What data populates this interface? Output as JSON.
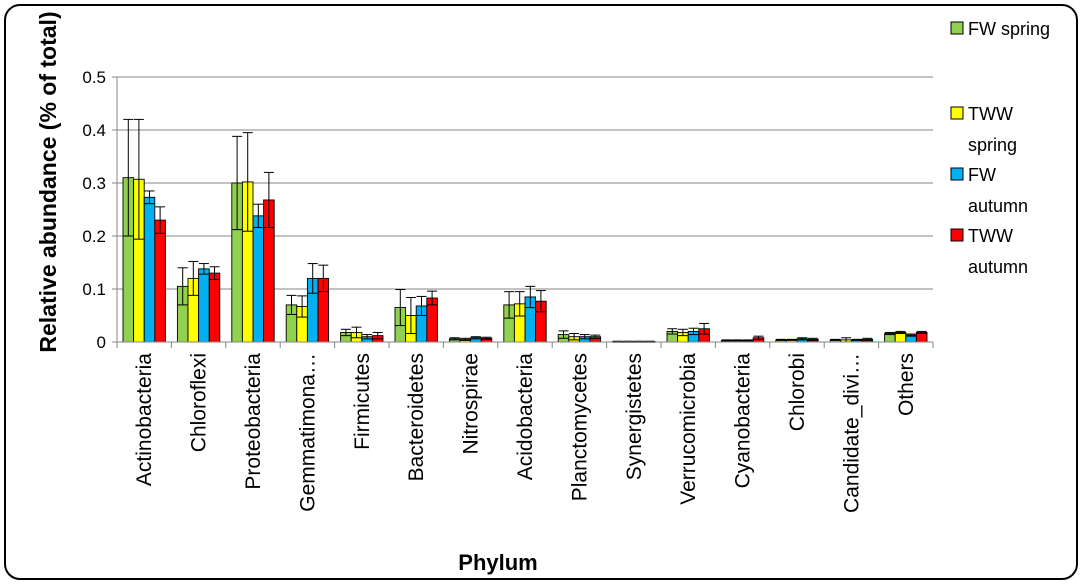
{
  "chart_data": {
    "type": "bar",
    "title": "",
    "xlabel": "Phylum",
    "ylabel": "Relative abundance (% of total)",
    "ylim": [
      0,
      0.5
    ],
    "yticks": [
      "0",
      "0.1",
      "0.2",
      "0.3",
      "0.4",
      "0.5"
    ],
    "grid": "horizontal",
    "legend_position": "right",
    "categories": [
      "Actinobacteria",
      "Chloroflexi",
      "Proteobacteria",
      "Gemmatimona…",
      "Firmicutes",
      "Bacteroidetes",
      "Nitrospirae",
      "Acidobacteria",
      "Planctomycetes",
      "Synergistetes",
      "Verrucomicrobia",
      "Cyanobacteria",
      "Chlorobi",
      "Candidate_divi…",
      "Others"
    ],
    "series": [
      {
        "name": "FW spring",
        "color": "#92D050",
        "values": [
          0.31,
          0.105,
          0.3,
          0.07,
          0.018,
          0.065,
          0.006,
          0.07,
          0.014,
          0.001,
          0.02,
          0.003,
          0.004,
          0.004,
          0.016
        ],
        "errors": [
          0.11,
          0.035,
          0.088,
          0.018,
          0.006,
          0.034,
          0.002,
          0.025,
          0.007,
          0.0005,
          0.005,
          0.001,
          0.001,
          0.001,
          0.002
        ]
      },
      {
        "name": "TWW spring",
        "color": "#FFFF00",
        "values": [
          0.307,
          0.12,
          0.302,
          0.067,
          0.018,
          0.05,
          0.005,
          0.072,
          0.01,
          0.001,
          0.018,
          0.003,
          0.004,
          0.004,
          0.018
        ],
        "errors": [
          0.113,
          0.032,
          0.093,
          0.02,
          0.01,
          0.034,
          0.002,
          0.023,
          0.006,
          0.0005,
          0.006,
          0.001,
          0.001,
          0.004,
          0.002
        ]
      },
      {
        "name": "FW autumn",
        "color": "#00B0F0",
        "values": [
          0.273,
          0.138,
          0.238,
          0.12,
          0.01,
          0.068,
          0.008,
          0.085,
          0.01,
          0.001,
          0.02,
          0.003,
          0.006,
          0.004,
          0.013
        ],
        "errors": [
          0.012,
          0.01,
          0.022,
          0.028,
          0.004,
          0.018,
          0.002,
          0.02,
          0.004,
          0.0005,
          0.006,
          0.001,
          0.002,
          0.001,
          0.002
        ]
      },
      {
        "name": "TWW autumn",
        "color": "#FF0000",
        "values": [
          0.23,
          0.13,
          0.268,
          0.12,
          0.012,
          0.083,
          0.007,
          0.077,
          0.01,
          0.001,
          0.025,
          0.008,
          0.005,
          0.005,
          0.018
        ],
        "errors": [
          0.025,
          0.012,
          0.052,
          0.025,
          0.006,
          0.013,
          0.002,
          0.02,
          0.003,
          0.0005,
          0.01,
          0.003,
          0.002,
          0.002,
          0.002
        ]
      }
    ]
  }
}
